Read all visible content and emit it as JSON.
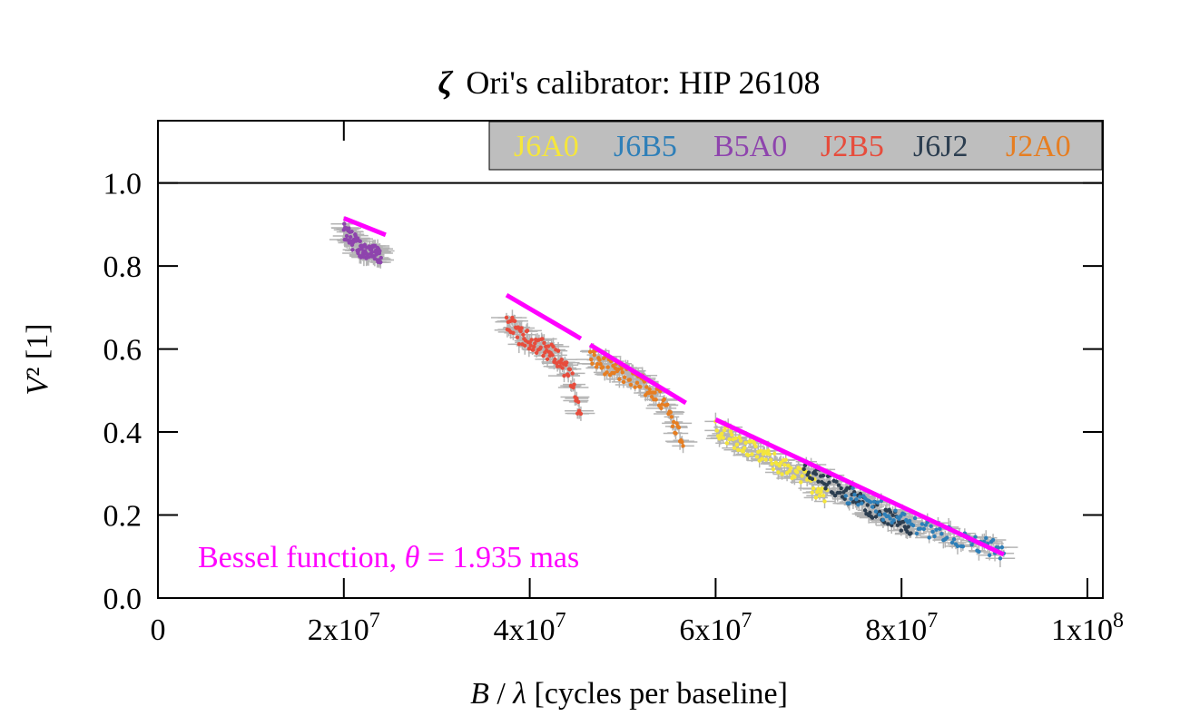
{
  "title": "Ori's calibrator: HIP 26108",
  "title_prefix": "ζ",
  "colors": {
    "J6A0": "#f5e63c",
    "J6B5": "#2e7fb8",
    "B5A0": "#8e44ad",
    "J2B5": "#e74c3c",
    "J6J2": "#2c3e50",
    "J2A0": "#e67e22",
    "fit": "#ff00ff",
    "errorbar": "#b4b4b4",
    "legend_bg": "#bebebe"
  },
  "chart_data": {
    "type": "scatter",
    "title": "ζ Ori's calibrator: HIP 26108",
    "xlabel": "B / λ [cycles per baseline]",
    "ylabel": "V² [1]",
    "xlim": [
      0,
      100000000
    ],
    "ylim": [
      0,
      1.15
    ],
    "x_ticks": [
      0,
      20000000,
      40000000,
      60000000,
      80000000,
      100000000
    ],
    "x_tick_labels": [
      {
        "base": "0",
        "exp": ""
      },
      {
        "base": "2x10",
        "exp": "7"
      },
      {
        "base": "4x10",
        "exp": "7"
      },
      {
        "base": "6x10",
        "exp": "7"
      },
      {
        "base": "8x10",
        "exp": "7"
      },
      {
        "base": "1x10",
        "exp": "8"
      }
    ],
    "y_ticks": [
      0.0,
      0.2,
      0.4,
      0.6,
      0.8,
      1.0
    ],
    "y_tick_labels": [
      "0.0",
      "0.2",
      "0.4",
      "0.6",
      "0.8",
      "1.0"
    ],
    "reference_line_y": 1.0,
    "legend": [
      "J6A0",
      "J6B5",
      "B5A0",
      "J2B5",
      "J6J2",
      "J2A0"
    ],
    "legend_position": "top-right",
    "annotation": "Bessel function, θ = 1.935 mas",
    "series": [
      {
        "name": "B5A0",
        "x": [
          20000000,
          21000000,
          22000000,
          23000000,
          24000000
        ],
        "y": [
          0.88,
          0.86,
          0.84,
          0.83,
          0.82
        ]
      },
      {
        "name": "J2B5",
        "x": [
          37500000,
          39000000,
          41000000,
          43000000,
          44500000,
          45500000
        ],
        "y": [
          0.67,
          0.63,
          0.61,
          0.58,
          0.53,
          0.43
        ]
      },
      {
        "name": "J2A0",
        "x": [
          46500000,
          49000000,
          52000000,
          54500000,
          56500000
        ],
        "y": [
          0.58,
          0.55,
          0.52,
          0.47,
          0.38
        ]
      },
      {
        "name": "J6A0",
        "x": [
          60000000,
          63000000,
          66000000,
          69000000,
          72000000
        ],
        "y": [
          0.41,
          0.37,
          0.33,
          0.3,
          0.24
        ]
      },
      {
        "name": "J6J2",
        "x": [
          69500000,
          72000000,
          75000000,
          78000000,
          81000000
        ],
        "y": [
          0.32,
          0.28,
          0.24,
          0.2,
          0.17
        ]
      },
      {
        "name": "J6B5",
        "x": [
          74000000,
          77000000,
          80000000,
          84000000,
          88000000,
          91000000
        ],
        "y": [
          0.25,
          0.22,
          0.19,
          0.16,
          0.13,
          0.11
        ]
      }
    ],
    "fit_segments": [
      {
        "x": [
          20000000,
          24500000
        ],
        "y": [
          0.915,
          0.875
        ]
      },
      {
        "x": [
          37500000,
          45500000
        ],
        "y": [
          0.73,
          0.625
        ]
      },
      {
        "x": [
          46500000,
          56800000
        ],
        "y": [
          0.61,
          0.47
        ]
      },
      {
        "x": [
          60000000,
          91000000
        ],
        "y": [
          0.43,
          0.105
        ]
      }
    ]
  }
}
